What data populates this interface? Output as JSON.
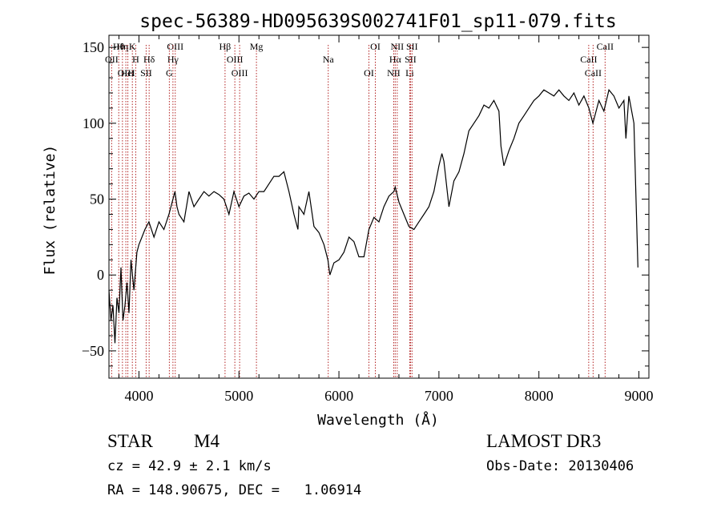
{
  "chart_data": {
    "type": "line",
    "title": "spec-56389-HD095639S002741F01_sp11-079.fits",
    "xlabel": "Wavelength (Å)",
    "ylabel": "Flux (relative)",
    "xlim": [
      3700,
      9100
    ],
    "ylim": [
      -68,
      158
    ],
    "x_ticks": [
      4000,
      5000,
      6000,
      7000,
      8000,
      9000
    ],
    "y_ticks": [
      -50,
      0,
      50,
      100,
      150
    ],
    "grid": false,
    "colors": {
      "spectrum": "#000000",
      "line_markers": "#b22222",
      "axes": "#000000"
    },
    "spectrum": {
      "x": [
        3700,
        3720,
        3740,
        3760,
        3780,
        3800,
        3820,
        3840,
        3860,
        3880,
        3900,
        3920,
        3950,
        3980,
        4000,
        4030,
        4060,
        4100,
        4150,
        4200,
        4250,
        4300,
        4340,
        4360,
        4380,
        4400,
        4450,
        4500,
        4550,
        4600,
        4650,
        4700,
        4750,
        4800,
        4850,
        4900,
        4950,
        5000,
        5050,
        5100,
        5150,
        5200,
        5250,
        5300,
        5350,
        5400,
        5450,
        5500,
        5550,
        5590,
        5600,
        5650,
        5700,
        5750,
        5800,
        5850,
        5890,
        5910,
        5950,
        6000,
        6050,
        6100,
        6150,
        6200,
        6250,
        6300,
        6350,
        6400,
        6450,
        6500,
        6550,
        6563,
        6600,
        6650,
        6700,
        6750,
        6800,
        6850,
        6900,
        6950,
        7000,
        7030,
        7050,
        7100,
        7150,
        7200,
        7250,
        7300,
        7350,
        7400,
        7450,
        7500,
        7550,
        7600,
        7620,
        7650,
        7700,
        7750,
        7800,
        7850,
        7900,
        7950,
        8000,
        8050,
        8100,
        8150,
        8200,
        8250,
        8300,
        8350,
        8400,
        8450,
        8500,
        8540,
        8600,
        8650,
        8700,
        8750,
        8800,
        8850,
        8870,
        8900,
        8950,
        8990
      ],
      "y": [
        -10,
        -30,
        -20,
        -45,
        -15,
        -25,
        5,
        -30,
        -20,
        -5,
        -25,
        10,
        -10,
        15,
        20,
        25,
        30,
        35,
        25,
        35,
        30,
        40,
        50,
        55,
        45,
        40,
        35,
        55,
        45,
        50,
        55,
        52,
        55,
        53,
        50,
        40,
        55,
        45,
        52,
        54,
        50,
        55,
        55,
        60,
        65,
        65,
        68,
        55,
        40,
        30,
        45,
        40,
        55,
        32,
        28,
        20,
        10,
        0,
        8,
        10,
        15,
        25,
        22,
        12,
        12,
        30,
        38,
        35,
        45,
        52,
        55,
        58,
        48,
        40,
        32,
        30,
        35,
        40,
        45,
        55,
        72,
        80,
        75,
        45,
        62,
        68,
        80,
        95,
        100,
        105,
        112,
        110,
        115,
        108,
        85,
        72,
        82,
        90,
        100,
        105,
        110,
        115,
        118,
        122,
        120,
        118,
        122,
        118,
        115,
        120,
        112,
        118,
        110,
        100,
        115,
        108,
        122,
        118,
        110,
        115,
        90,
        118,
        100,
        5
      ]
    },
    "line_markers": [
      {
        "label": "Hθ",
        "x": 3798
      },
      {
        "label": "OII",
        "x": 3727
      },
      {
        "label": "OIII",
        "x": 3869
      },
      {
        "label": "K",
        "x": 3934
      },
      {
        "label": "H",
        "x": 3968
      },
      {
        "label": "HeI",
        "x": 3889
      },
      {
        "label": "Hη",
        "x": 3835
      },
      {
        "label": "Hδ",
        "x": 4102
      },
      {
        "label": "SII",
        "x": 4072
      },
      {
        "label": "OIII",
        "x": 4363
      },
      {
        "label": "Hγ",
        "x": 4340
      },
      {
        "label": "G",
        "x": 4304
      },
      {
        "label": "Hβ",
        "x": 4861
      },
      {
        "label": "OIII",
        "x": 4959
      },
      {
        "label": "OIII",
        "x": 5007
      },
      {
        "label": "Mg",
        "x": 5175
      },
      {
        "label": "Na",
        "x": 5893
      },
      {
        "label": "OI",
        "x": 6300
      },
      {
        "label": "OI",
        "x": 6364
      },
      {
        "label": "Hα",
        "x": 6563
      },
      {
        "label": "NII",
        "x": 6548
      },
      {
        "label": "NII",
        "x": 6583
      },
      {
        "label": "SII",
        "x": 6716
      },
      {
        "label": "Li",
        "x": 6708
      },
      {
        "label": "SII",
        "x": 6731
      },
      {
        "label": "CaII",
        "x": 8498
      },
      {
        "label": "CaII",
        "x": 8542
      },
      {
        "label": "CaII",
        "x": 8662
      }
    ]
  },
  "info": {
    "class": "STAR",
    "subclass": "M4",
    "survey": "LAMOST DR3",
    "cz": "cz = 42.9 ± 2.1 km/s",
    "obs_date": "Obs-Date: 20130406",
    "coords": "RA = 148.90675, DEC =   1.06914"
  }
}
